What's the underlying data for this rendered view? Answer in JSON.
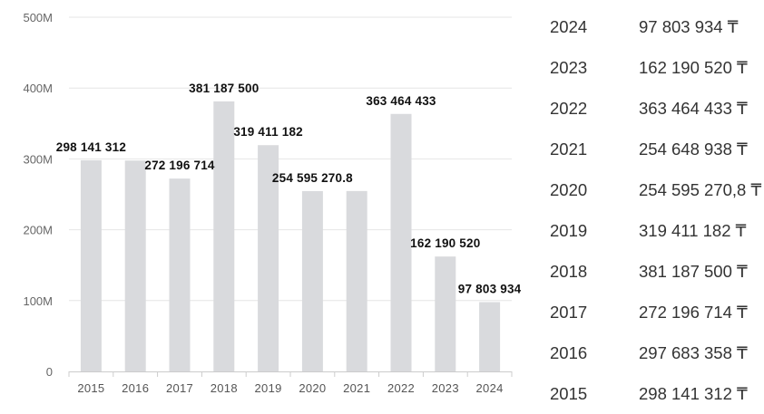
{
  "chart_data": {
    "type": "bar",
    "title": "",
    "xlabel": "",
    "ylabel": "",
    "categories": [
      "2015",
      "2016",
      "2017",
      "2018",
      "2019",
      "2020",
      "2021",
      "2022",
      "2023",
      "2024"
    ],
    "values": [
      298141312,
      297683358,
      272196714,
      381187500,
      319411182,
      254595270.8,
      254648938,
      363464433,
      162190520,
      97803934
    ],
    "data_labels": [
      "298 141 312",
      "",
      "272 196 714",
      "381 187 500",
      "319 411 182",
      "254 595 270.8",
      "",
      "363 464 433",
      "162 190 520",
      "97 803 934"
    ],
    "ylim": [
      0,
      500000000
    ],
    "yticks": [
      0,
      100000000,
      200000000,
      300000000,
      400000000,
      500000000
    ],
    "ytick_labels": [
      "0",
      "100M",
      "200M",
      "300M",
      "400M",
      "500M"
    ],
    "grid": true,
    "legend": "none",
    "bar_color": "#d9dadd",
    "grid_color": "#e6e6e6",
    "axis_color": "#cccccc"
  },
  "table": {
    "rows": [
      {
        "year": "2024",
        "amount": "97 803 934 ₸"
      },
      {
        "year": "2023",
        "amount": "162 190 520 ₸"
      },
      {
        "year": "2022",
        "amount": "363 464 433 ₸"
      },
      {
        "year": "2021",
        "amount": "254 648 938 ₸"
      },
      {
        "year": "2020",
        "amount": "254 595 270,8 ₸"
      },
      {
        "year": "2019",
        "amount": "319 411 182 ₸"
      },
      {
        "year": "2018",
        "amount": "381 187 500 ₸"
      },
      {
        "year": "2017",
        "amount": "272 196 714 ₸"
      },
      {
        "year": "2016",
        "amount": "297 683 358 ₸"
      },
      {
        "year": "2015",
        "amount": "298 141 312 ₸"
      }
    ]
  }
}
